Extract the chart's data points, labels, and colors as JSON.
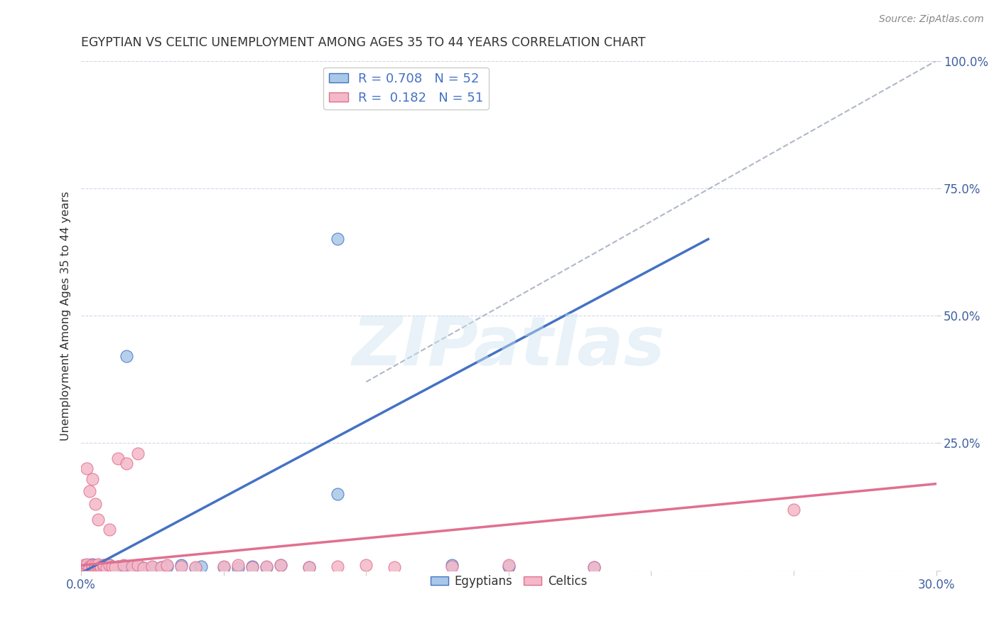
{
  "title": "EGYPTIAN VS CELTIC UNEMPLOYMENT AMONG AGES 35 TO 44 YEARS CORRELATION CHART",
  "source": "Source: ZipAtlas.com",
  "ylabel": "Unemployment Among Ages 35 to 44 years",
  "xlim": [
    0.0,
    0.3
  ],
  "ylim": [
    0.0,
    1.0
  ],
  "xtick_pos": [
    0.0,
    0.05,
    0.1,
    0.15,
    0.2,
    0.25,
    0.3
  ],
  "xtick_labels": [
    "0.0%",
    "",
    "",
    "",
    "",
    "",
    "30.0%"
  ],
  "ytick_pos": [
    0.0,
    0.25,
    0.5,
    0.75,
    1.0
  ],
  "ytick_labels": [
    "",
    "25.0%",
    "50.0%",
    "75.0%",
    "100.0%"
  ],
  "legend_label1": "R = 0.708   N = 52",
  "legend_label2": "R =  0.182   N = 51",
  "legend_bottom_label1": "Egyptians",
  "legend_bottom_label2": "Celtics",
  "watermark": "ZIPatlas",
  "egyptian_color": "#a8c8e8",
  "celtic_color": "#f4b8c8",
  "egyptian_line_color": "#4472c4",
  "celtic_line_color": "#e07090",
  "ref_line_color": "#b0b8c8",
  "eg_line_x0": 0.0,
  "eg_line_y0": -0.005,
  "eg_line_x1": 0.22,
  "eg_line_y1": 0.65,
  "celt_line_x0": 0.0,
  "celt_line_y0": 0.01,
  "celt_line_x1": 0.3,
  "celt_line_y1": 0.17,
  "ref_line_x0": 0.1,
  "ref_line_y0": 0.37,
  "ref_line_x1": 0.3,
  "ref_line_y1": 1.0,
  "egyptian_x": [
    0.001,
    0.001,
    0.002,
    0.002,
    0.002,
    0.003,
    0.003,
    0.003,
    0.004,
    0.004,
    0.004,
    0.004,
    0.005,
    0.005,
    0.005,
    0.006,
    0.006,
    0.006,
    0.007,
    0.007,
    0.008,
    0.008,
    0.008,
    0.009,
    0.009,
    0.01,
    0.01,
    0.011,
    0.012,
    0.013,
    0.015,
    0.016,
    0.018,
    0.02,
    0.022,
    0.025,
    0.028,
    0.03,
    0.035,
    0.04,
    0.042,
    0.05,
    0.055,
    0.06,
    0.065,
    0.07,
    0.08,
    0.09,
    0.13,
    0.15,
    0.18,
    0.09
  ],
  "egyptian_y": [
    0.005,
    0.008,
    0.003,
    0.006,
    0.01,
    0.004,
    0.007,
    0.011,
    0.005,
    0.008,
    0.003,
    0.012,
    0.006,
    0.009,
    0.004,
    0.007,
    0.003,
    0.01,
    0.005,
    0.008,
    0.004,
    0.007,
    0.01,
    0.005,
    0.008,
    0.006,
    0.01,
    0.007,
    0.005,
    0.008,
    0.006,
    0.42,
    0.008,
    0.01,
    0.005,
    0.007,
    0.006,
    0.008,
    0.01,
    0.005,
    0.008,
    0.007,
    0.005,
    0.008,
    0.006,
    0.01,
    0.007,
    0.15,
    0.01,
    0.008,
    0.006,
    0.65
  ],
  "celtic_x": [
    0.001,
    0.001,
    0.002,
    0.002,
    0.002,
    0.003,
    0.003,
    0.003,
    0.004,
    0.004,
    0.004,
    0.005,
    0.005,
    0.005,
    0.006,
    0.006,
    0.006,
    0.007,
    0.007,
    0.008,
    0.008,
    0.009,
    0.01,
    0.01,
    0.011,
    0.012,
    0.013,
    0.015,
    0.016,
    0.018,
    0.02,
    0.022,
    0.025,
    0.028,
    0.03,
    0.035,
    0.04,
    0.05,
    0.055,
    0.06,
    0.065,
    0.07,
    0.08,
    0.09,
    0.1,
    0.11,
    0.13,
    0.15,
    0.18,
    0.25,
    0.02
  ],
  "celtic_y": [
    0.005,
    0.01,
    0.2,
    0.008,
    0.012,
    0.155,
    0.008,
    0.005,
    0.007,
    0.18,
    0.01,
    0.13,
    0.006,
    0.01,
    0.008,
    0.012,
    0.1,
    0.005,
    0.008,
    0.007,
    0.01,
    0.005,
    0.08,
    0.01,
    0.008,
    0.006,
    0.22,
    0.01,
    0.21,
    0.008,
    0.01,
    0.005,
    0.008,
    0.006,
    0.01,
    0.008,
    0.006,
    0.008,
    0.01,
    0.006,
    0.008,
    0.01,
    0.006,
    0.008,
    0.01,
    0.006,
    0.008,
    0.01,
    0.006,
    0.12,
    0.23
  ]
}
